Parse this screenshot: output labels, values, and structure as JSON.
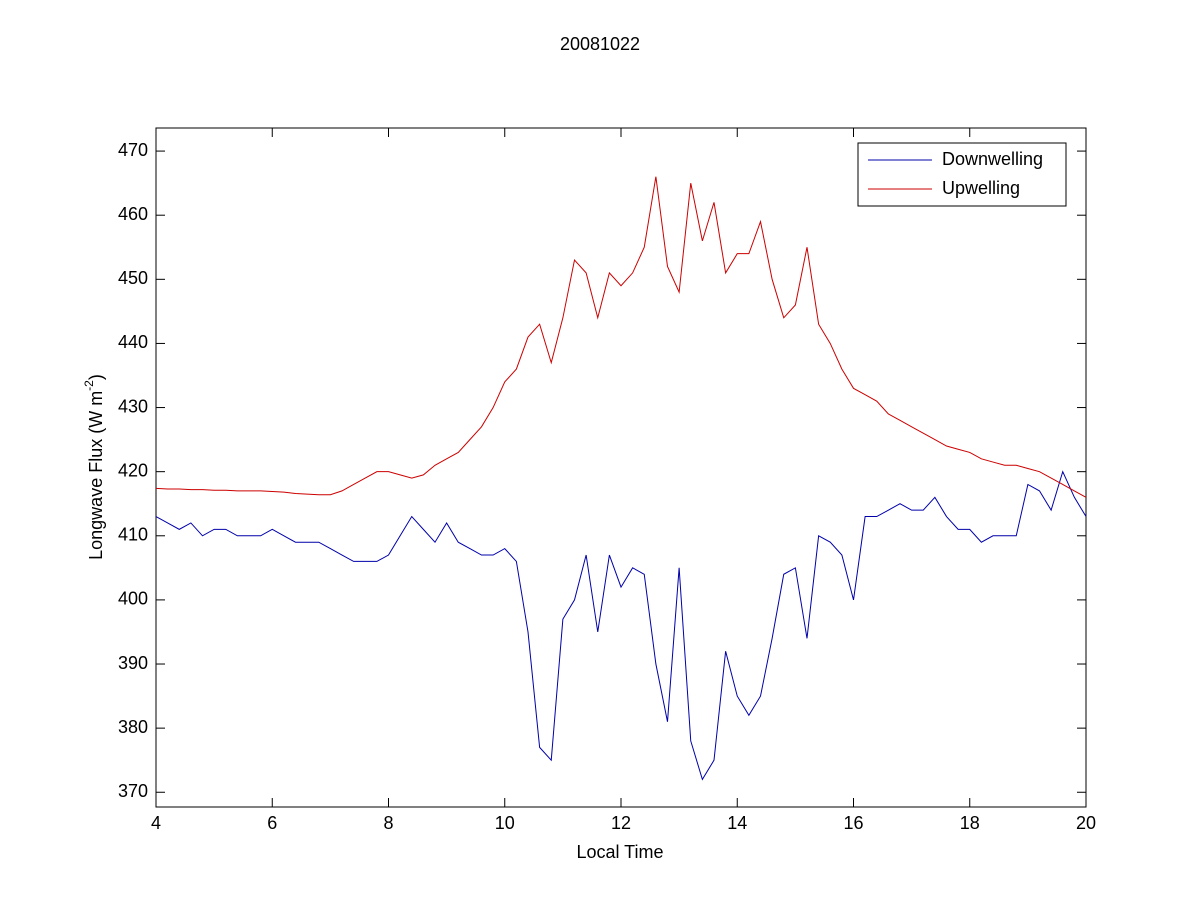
{
  "chart_data": {
    "type": "line",
    "title": "20081022",
    "xlabel": "Local Time",
    "ylabel": {
      "text": "Longwave Flux (W m",
      "superscript": "-2",
      "suffix": ")"
    },
    "x": [
      4.0,
      4.2,
      4.4,
      4.6,
      4.8,
      5.0,
      5.2,
      5.4,
      5.6,
      5.8,
      6.0,
      6.2,
      6.4,
      6.6,
      6.8,
      7.0,
      7.2,
      7.4,
      7.6,
      7.8,
      8.0,
      8.2,
      8.4,
      8.6,
      8.8,
      9.0,
      9.2,
      9.4,
      9.6,
      9.8,
      10.0,
      10.2,
      10.4,
      10.6,
      10.8,
      11.0,
      11.2,
      11.4,
      11.6,
      11.8,
      12.0,
      12.2,
      12.4,
      12.6,
      12.8,
      13.0,
      13.2,
      13.4,
      13.6,
      13.8,
      14.0,
      14.2,
      14.4,
      14.6,
      14.8,
      15.0,
      15.2,
      15.4,
      15.6,
      15.8,
      16.0,
      16.2,
      16.4,
      16.6,
      16.8,
      17.0,
      17.2,
      17.4,
      17.6,
      17.8,
      18.0,
      18.2,
      18.4,
      18.6,
      18.8,
      19.0,
      19.2,
      19.4,
      19.6,
      19.8,
      20.0
    ],
    "series": [
      {
        "name": "Downwelling",
        "color": "#0000aa",
        "values": [
          413,
          412,
          411,
          412,
          410,
          411,
          411,
          410,
          410,
          410,
          411,
          410,
          409,
          409,
          409,
          408,
          407,
          406,
          406,
          406,
          407,
          410,
          413,
          411,
          409,
          412,
          409,
          408,
          407,
          407,
          408,
          406,
          395,
          377,
          375,
          397,
          400,
          407,
          395,
          407,
          402,
          405,
          404,
          390,
          381,
          405,
          378,
          372,
          375,
          392,
          385,
          382,
          385,
          394,
          404,
          405,
          394,
          410,
          409,
          407,
          400,
          413,
          413,
          414,
          415,
          414,
          414,
          416,
          413,
          411,
          411,
          409,
          410,
          410,
          410,
          418,
          417,
          414,
          420,
          416,
          413
        ]
      },
      {
        "name": "Upwelling",
        "color": "#cc0000",
        "values": [
          417.4,
          417.3,
          417.3,
          417.2,
          417.2,
          417.1,
          417.1,
          417.0,
          417.0,
          417.0,
          416.9,
          416.8,
          416.6,
          416.5,
          416.4,
          416.4,
          417,
          418,
          419,
          420,
          420,
          419.5,
          419,
          419.5,
          421,
          422,
          423,
          425,
          427,
          430,
          434,
          436,
          441,
          443,
          437,
          444,
          453,
          451,
          444,
          451,
          449,
          451,
          455,
          466,
          452,
          448,
          465,
          456,
          462,
          451,
          454,
          454,
          459,
          450,
          444,
          446,
          455,
          443,
          440,
          436,
          433,
          432,
          431,
          429,
          428,
          427,
          426,
          425,
          424,
          423.5,
          423,
          422,
          421.5,
          421,
          421,
          420.5,
          420,
          419,
          418,
          417,
          416
        ]
      }
    ],
    "xlim": [
      4,
      20
    ],
    "ylim": [
      367.7,
      473.6
    ],
    "xticks": [
      4,
      6,
      8,
      10,
      12,
      14,
      16,
      18,
      20
    ],
    "yticks": [
      370,
      380,
      390,
      400,
      410,
      420,
      430,
      440,
      450,
      460,
      470
    ],
    "grid": false,
    "legend": "northeast"
  }
}
